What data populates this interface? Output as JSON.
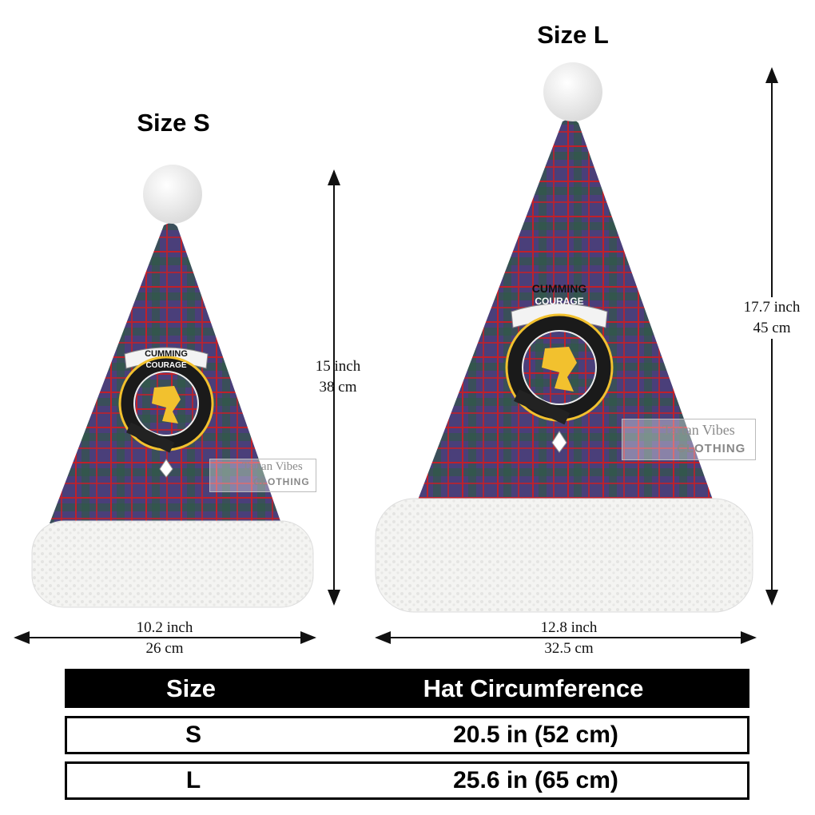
{
  "sizes": {
    "small": {
      "title": "Size S",
      "height_in": "15 inch",
      "height_cm": "38 cm",
      "width_in": "10.2 inch",
      "width_cm": "26 cm"
    },
    "large": {
      "title": "Size L",
      "height_in": "17.7 inch",
      "height_cm": "45 cm",
      "width_in": "12.8 inch",
      "width_cm": "32.5 cm"
    }
  },
  "crest": {
    "clan": "CUMMING",
    "motto": "COURAGE"
  },
  "watermark": {
    "line1": "Tartan Vibes",
    "line2": "CLOTHING"
  },
  "table": {
    "headers": [
      "Size",
      "Hat Circumference"
    ],
    "rows": [
      {
        "size": "S",
        "circumference": "20.5 in (52 cm)"
      },
      {
        "size": "L",
        "circumference": "25.6 in (65 cm)"
      }
    ]
  },
  "colors": {
    "tartan_base": "#4a3f7a",
    "tartan_red": "#c0202a",
    "tartan_green": "#2f6a3a",
    "crest_gold": "#f2c12e",
    "fur": "#f4f4f2"
  }
}
